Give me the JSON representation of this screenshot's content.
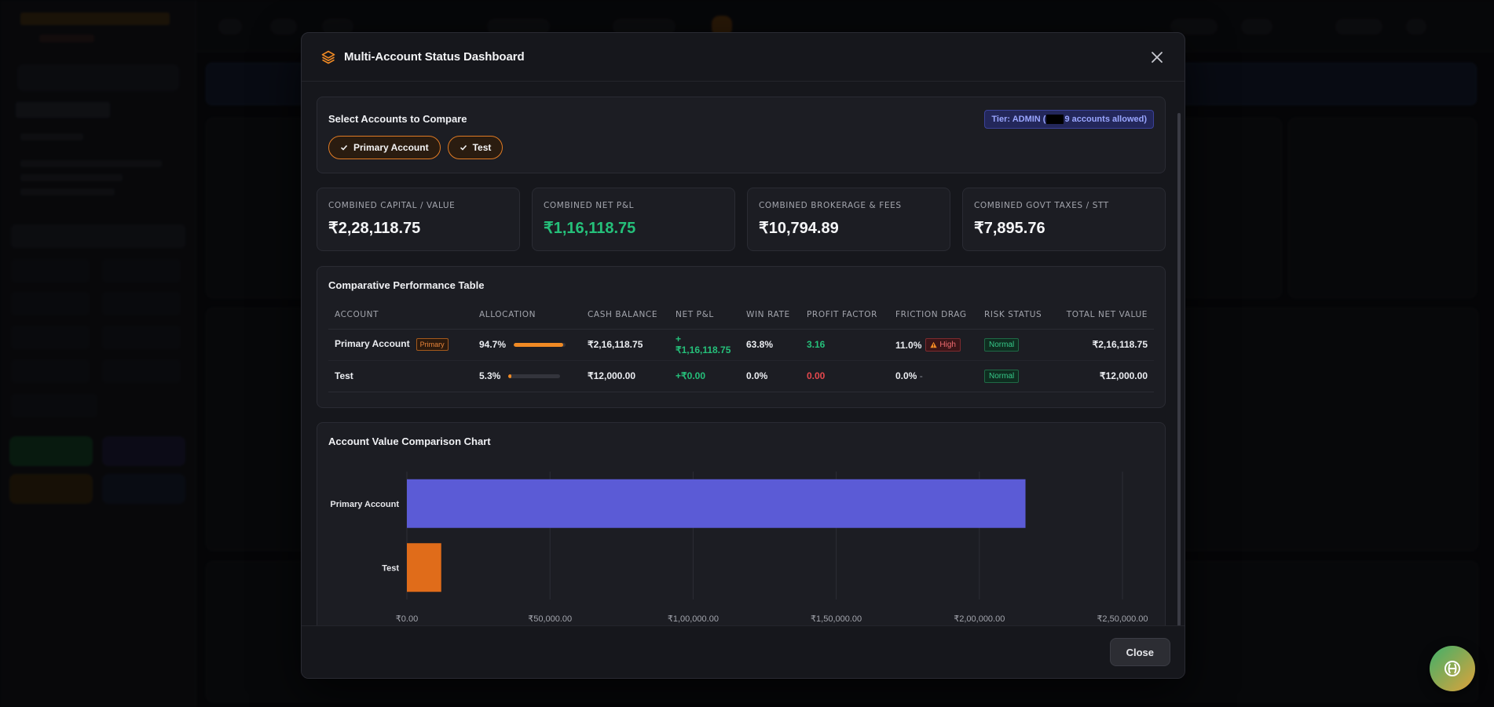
{
  "modal": {
    "title": "Multi-Account Status Dashboard",
    "close_label": "Close"
  },
  "select": {
    "title": "Select Accounts to Compare",
    "tier_prefix": "Tier: ADMIN (",
    "tier_suffix": "9 accounts allowed)",
    "chips": [
      "Primary Account",
      "Test"
    ]
  },
  "summary": [
    {
      "label": "COMBINED CAPITAL / VALUE",
      "value": "₹2,28,118.75"
    },
    {
      "label": "COMBINED NET P&L",
      "value": "₹1,16,118.75"
    },
    {
      "label": "COMBINED BROKERAGE & FEES",
      "value": "₹10,794.89"
    },
    {
      "label": "COMBINED GOVT TAXES / STT",
      "value": "₹7,895.76"
    }
  ],
  "table": {
    "title": "Comparative Performance Table",
    "headers": [
      "ACCOUNT",
      "ALLOCATION",
      "CASH BALANCE",
      "NET P&L",
      "WIN RATE",
      "PROFIT FACTOR",
      "FRICTION DRAG",
      "RISK STATUS",
      "TOTAL NET VALUE"
    ],
    "rows": [
      {
        "account": "Primary Account",
        "tag": "Primary",
        "allocation": "94.7%",
        "allocation_pct": 94.7,
        "cash": "₹2,16,118.75",
        "pnl": "+₹1,16,118.75",
        "win_rate": "63.8%",
        "profit_factor": "3.16",
        "friction": "11.0%",
        "friction_tag": "High",
        "risk": "Normal",
        "total": "₹2,16,118.75"
      },
      {
        "account": "Test",
        "tag": "",
        "allocation": "5.3%",
        "allocation_pct": 5.3,
        "cash": "₹12,000.00",
        "pnl": "+₹0.00",
        "win_rate": "0.0%",
        "profit_factor": "0.00",
        "friction": "0.0%",
        "friction_tag": "-",
        "risk": "Normal",
        "total": "₹12,000.00"
      }
    ]
  },
  "chart_section": {
    "title": "Account Value Comparison Chart"
  },
  "chart_data": {
    "type": "bar",
    "orientation": "horizontal",
    "categories": [
      "Primary Account",
      "Test"
    ],
    "values": [
      216118.75,
      12000
    ],
    "colors": [
      "#5b5bd6",
      "#e06c1a"
    ],
    "xlim": [
      0,
      250000
    ],
    "xticks": [
      "₹0.00",
      "₹50,000.00",
      "₹1,00,000.00",
      "₹1,50,000.00",
      "₹2,00,000.00",
      "₹2,50,000.00"
    ],
    "grid": true
  },
  "colors": {
    "accent_orange": "#e07b24",
    "positive": "#25c07a",
    "negative": "#e5484d",
    "indigo": "#5b5bd6"
  }
}
